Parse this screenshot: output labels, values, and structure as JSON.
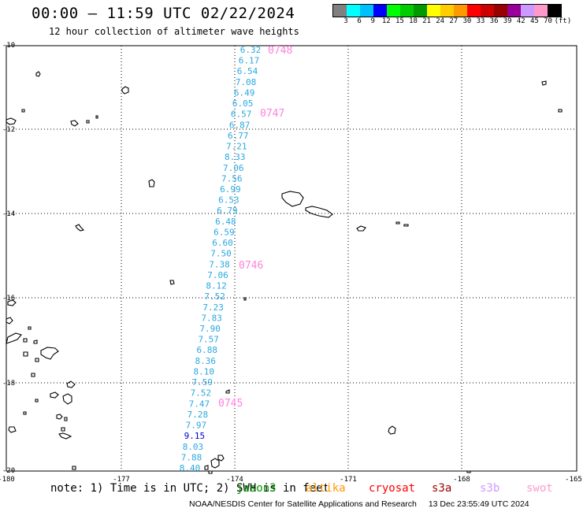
{
  "header": {
    "title": "00:00 – 11:59 UTC 02/22/2024",
    "subtitle": "12 hour collection of altimeter wave heights"
  },
  "colorbar": {
    "colors": [
      "#808080",
      "#00ffff",
      "#00bfff",
      "#0000ff",
      "#00ff00",
      "#00cc00",
      "#009900",
      "#ffff00",
      "#ffcc00",
      "#ff9900",
      "#ff0000",
      "#cc0000",
      "#990000",
      "#990099",
      "#cc99ff",
      "#ff99cc",
      "#000000"
    ],
    "labels": [
      "3",
      "6",
      "9",
      "12",
      "15",
      "18",
      "21",
      "24",
      "27",
      "30",
      "33",
      "36",
      "39",
      "42",
      "45",
      "70",
      "(ft)"
    ]
  },
  "axes": {
    "x_ticks": [
      "-180",
      "-177",
      "-174",
      "-171",
      "-168",
      "-165"
    ],
    "y_ticks": [
      "-10",
      "-12",
      "-14",
      "-16",
      "-18",
      "-20"
    ]
  },
  "colors": {
    "wave_text": "#29a8e0",
    "high_wave_text": "#0000cc",
    "time_text": "#ff80dd",
    "grid": "#000000"
  },
  "track": {
    "times": [
      "0748",
      "0747",
      "0746",
      "0745"
    ],
    "values": [
      "6.32",
      "6.17",
      "6.54",
      "7.08",
      "6.49",
      "6.05",
      "6.57",
      "6.87",
      "6.77",
      "7.21",
      "8.33",
      "7.06",
      "7.56",
      "6.99",
      "6.53",
      "6.79",
      "6.48",
      "6.59",
      "6.60",
      "7.50",
      "7.38",
      "7.06",
      "8.12",
      "7.52",
      "7.23",
      "7.83",
      "7.90",
      "7.57",
      "6.88",
      "8.36",
      "8.10",
      "7.59",
      "7.52",
      "7.47",
      "7.28",
      "7.97",
      "9.15",
      "8.03",
      "7.88",
      "8.40"
    ]
  },
  "note": {
    "text": "note: 1) Time is in UTC; 2) SWH is in feet"
  },
  "satellites": [
    {
      "name": "jason3",
      "color": "#009900"
    },
    {
      "name": "altika",
      "color": "#ff9900"
    },
    {
      "name": "cryosat",
      "color": "#ff0000"
    },
    {
      "name": "s3a",
      "color": "#990000"
    },
    {
      "name": "s3b",
      "color": "#cc99ff"
    },
    {
      "name": "swot",
      "color": "#ff99cc"
    }
  ],
  "footer": {
    "credit": "NOAA/NESDIS Center for Satellite Applications and Research",
    "timestamp": "13 Dec 23:55:49 UTC 2024"
  }
}
